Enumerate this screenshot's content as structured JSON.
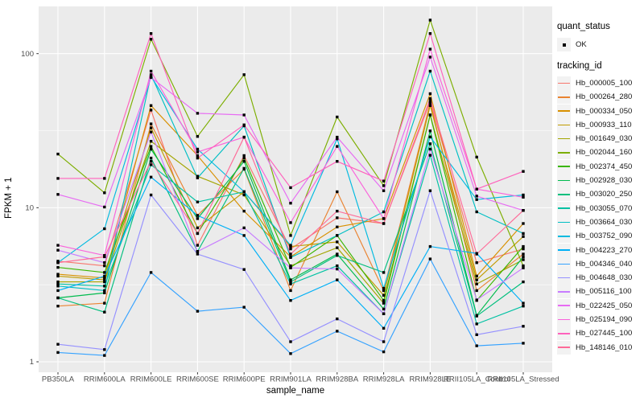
{
  "figure": {
    "panel_background": "#EBEBEB",
    "grid_color": "#FFFFFF",
    "point_color": "#000000",
    "tick_label_color": "#4D4D4D",
    "legend_key_background": "#F2F2F2"
  },
  "chart_data": {
    "type": "line",
    "title": "",
    "xlabel": "sample_name",
    "ylabel": "FPKM + 1",
    "y_scale": "log10",
    "grid": true,
    "legend_position": "right",
    "ylim": [
      0.85,
      205
    ],
    "y_ticks": [
      1,
      10,
      100
    ],
    "y_tick_labels": [
      "1",
      "10",
      "100"
    ],
    "y_minor_breaks": [
      3.162,
      31.62
    ],
    "categories": [
      "PB350LA",
      "RRIM600LA",
      "RRIM600LE",
      "RRIM600SE",
      "RRIM600PE",
      "RRIM901LA",
      "RRIM928BA",
      "RRIM928LA",
      "RRIM928LE",
      "RRII105LA_Control",
      "RRII105LA_Stressed"
    ],
    "legend": {
      "quant_status_title": "quant_status",
      "quant_status_items": [
        "OK"
      ],
      "tracking_title": "tracking_id"
    },
    "series": [
      {
        "name": "Hb_000005_100",
        "color": "#F8766D",
        "values": [
          4.5,
          4.2,
          43,
          5.7,
          21.8,
          5.4,
          8.6,
          7.9,
          49,
          4.4,
          5.4
        ]
      },
      {
        "name": "Hb_000264_280",
        "color": "#EA8331",
        "values": [
          2.3,
          2.4,
          35,
          8.9,
          17.8,
          2.9,
          12.7,
          2.9,
          48,
          2.9,
          5.0
        ]
      },
      {
        "name": "Hb_000334_050",
        "color": "#D89000",
        "values": [
          3.7,
          3.5,
          46,
          21.8,
          9.5,
          4.8,
          7.5,
          8.5,
          55,
          3.6,
          7.9
        ]
      },
      {
        "name": "Hb_000933_110",
        "color": "#C09B00",
        "values": [
          3.6,
          3.4,
          33,
          7.4,
          12.7,
          5.6,
          6.0,
          2.7,
          46,
          3.4,
          6.5
        ]
      },
      {
        "name": "Hb_001649_030",
        "color": "#A3A500",
        "values": [
          3.3,
          3.3,
          27,
          16,
          12.1,
          4.2,
          5.5,
          2.4,
          40,
          3.2,
          4.6
        ]
      },
      {
        "name": "Hb_002044_160",
        "color": "#7CAE00",
        "values": [
          22.3,
          12.5,
          124,
          29,
          73,
          6.6,
          38.8,
          13.9,
          165,
          21.3,
          4.2
        ]
      },
      {
        "name": "Hb_002374_450",
        "color": "#39B600",
        "values": [
          4.1,
          3.8,
          25,
          6.8,
          21,
          4.1,
          6.6,
          2.5,
          40,
          2.5,
          5.6
        ]
      },
      {
        "name": "Hb_002928_030",
        "color": "#00BB4E",
        "values": [
          2.6,
          2.8,
          24,
          8.5,
          20,
          3.4,
          5.0,
          2.2,
          31.5,
          2.0,
          4.8
        ]
      },
      {
        "name": "Hb_003020_250",
        "color": "#00BF7D",
        "values": [
          2.6,
          2.1,
          21,
          5.2,
          18,
          3.3,
          4.9,
          3.8,
          26,
          1.98,
          3.3
        ]
      },
      {
        "name": "Hb_003055_070",
        "color": "#00C1A3",
        "values": [
          3.2,
          3.1,
          19,
          10.9,
          12.7,
          3.2,
          4.2,
          2.05,
          21.9,
          1.76,
          2.3
        ]
      },
      {
        "name": "Hb_003664_030",
        "color": "#00BFC4",
        "values": [
          3.1,
          2.9,
          73,
          15.6,
          34,
          4.75,
          6.6,
          9.4,
          77,
          9.4,
          6.8
        ]
      },
      {
        "name": "Hb_003752_090",
        "color": "#00BAE0",
        "values": [
          4.4,
          7.3,
          71,
          24,
          12.7,
          5.7,
          28,
          3.0,
          28.8,
          11.3,
          12.1
        ]
      },
      {
        "name": "Hb_004223_270",
        "color": "#00B0F6",
        "values": [
          2.9,
          3.6,
          15.8,
          8.9,
          6.6,
          2.5,
          3.4,
          1.65,
          5.6,
          5.05,
          2.4
        ]
      },
      {
        "name": "Hb_004346_040",
        "color": "#35A2FF",
        "values": [
          1.15,
          1.1,
          3.8,
          2.13,
          2.26,
          1.13,
          1.58,
          1.16,
          4.65,
          1.27,
          1.32
        ]
      },
      {
        "name": "Hb_004648_030",
        "color": "#9590FF",
        "values": [
          1.3,
          1.2,
          12.1,
          5.0,
          3.97,
          1.35,
          1.9,
          1.35,
          12.9,
          1.5,
          1.7
        ]
      },
      {
        "name": "Hb_005116_100",
        "color": "#C77CFF",
        "values": [
          5.3,
          4.4,
          31,
          5.2,
          7.4,
          4.07,
          4.0,
          2.05,
          24,
          2.52,
          4.07
        ]
      },
      {
        "name": "Hb_022425_050",
        "color": "#E76BF3",
        "values": [
          12.2,
          10.1,
          70,
          41,
          40,
          10.7,
          28.7,
          12.9,
          95,
          11.9,
          9.6
        ]
      },
      {
        "name": "Hb_025194_090",
        "color": "#FA62DB",
        "values": [
          5.7,
          4.9,
          77,
          23,
          28.7,
          8.0,
          25,
          8.5,
          107,
          13.2,
          11.7
        ]
      },
      {
        "name": "Hb_027445_100",
        "color": "#FF62BC",
        "values": [
          15.5,
          15.5,
          135,
          21,
          34.5,
          13.5,
          20,
          14.9,
          135,
          13.2,
          17.2
        ]
      },
      {
        "name": "Hb_148146_010",
        "color": "#FF6A98",
        "values": [
          4.4,
          4.8,
          20,
          6.8,
          28.7,
          5.0,
          9.5,
          7.9,
          51,
          5.0,
          9.6
        ]
      }
    ]
  }
}
